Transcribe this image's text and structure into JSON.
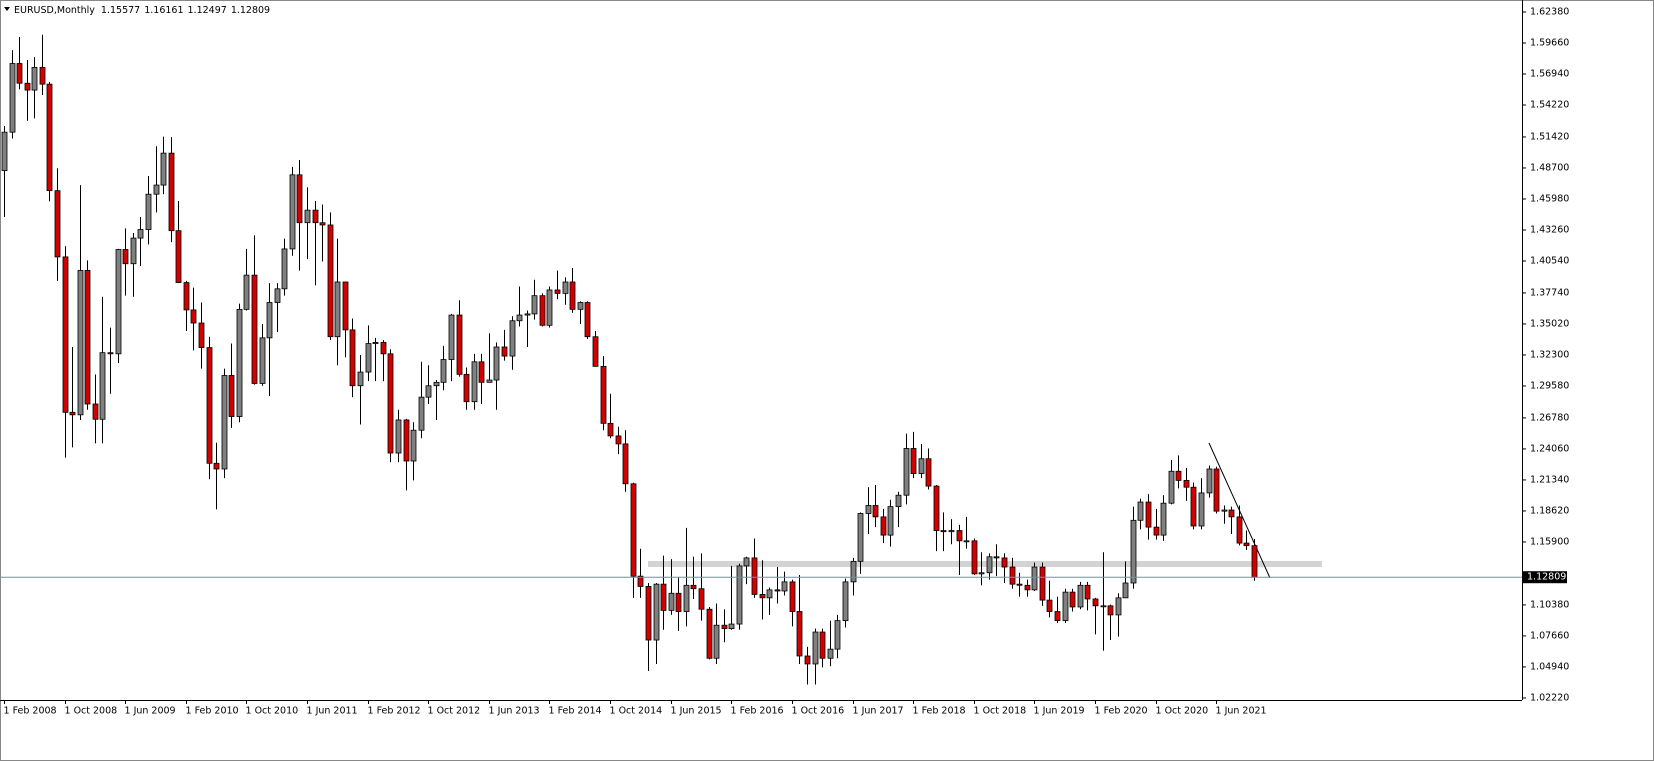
{
  "chart_data": {
    "type": "candlestick",
    "symbol": "EURUSD,Monthly",
    "categories": [
      "1 Feb 2008",
      null,
      null,
      null,
      null,
      null,
      null,
      null,
      "1 Oct 2008",
      null,
      null,
      null,
      null,
      null,
      null,
      null,
      "1 Jun 2009",
      null,
      null,
      null,
      null,
      null,
      null,
      null,
      "1 Feb 2010",
      null,
      null,
      null,
      null,
      null,
      null,
      null,
      "1 Oct 2010",
      null,
      null,
      null,
      null,
      null,
      null,
      null,
      "1 Jun 2011",
      null,
      null,
      null,
      null,
      null,
      null,
      null,
      "1 Feb 2012",
      null,
      null,
      null,
      null,
      null,
      null,
      null,
      "1 Oct 2012",
      null,
      null,
      null,
      null,
      null,
      null,
      null,
      "1 Jun 2013",
      null,
      null,
      null,
      null,
      null,
      null,
      null,
      "1 Feb 2014",
      null,
      null,
      null,
      null,
      null,
      null,
      null,
      "1 Oct 2014",
      null,
      null,
      null,
      null,
      null,
      null,
      null,
      "1 Jun 2015",
      null,
      null,
      null,
      null,
      null,
      null,
      null,
      "1 Feb 2016",
      null,
      null,
      null,
      null,
      null,
      null,
      null,
      "1 Oct 2016",
      null,
      null,
      null,
      null,
      null,
      null,
      null,
      "1 Jun 2017",
      null,
      null,
      null,
      null,
      null,
      null,
      null,
      "1 Feb 2018",
      null,
      null,
      null,
      null,
      null,
      null,
      null,
      "1 Oct 2018",
      null,
      null,
      null,
      null,
      null,
      null,
      null,
      "1 Jun 2019",
      null,
      null,
      null,
      null,
      null,
      null,
      null,
      "1 Feb 2020",
      null,
      null,
      null,
      null,
      null,
      null,
      null,
      "1 Oct 2020",
      null,
      null,
      null,
      null,
      null,
      null,
      null,
      "1 Jun 2021",
      null,
      null,
      null,
      null,
      null
    ],
    "open": [
      1.4847,
      1.5184,
      1.5786,
      1.5613,
      1.5553,
      1.5752,
      1.5605,
      1.4671,
      1.409,
      1.2727,
      1.2705,
      1.3971,
      1.28,
      1.2666,
      1.325,
      1.324,
      1.4155,
      1.403,
      1.4255,
      1.433,
      1.464,
      1.472,
      1.5,
      1.432,
      1.3865,
      1.3625,
      1.351,
      1.3295,
      1.228,
      1.223,
      1.305,
      1.269,
      1.363,
      1.393,
      1.298,
      1.338,
      1.369,
      1.381,
      1.416,
      1.481,
      1.439,
      1.45,
      1.439,
      1.437,
      1.339,
      1.387,
      1.345,
      1.296,
      1.308,
      1.333,
      1.334,
      1.324,
      1.237,
      1.266,
      1.23,
      1.257,
      1.286,
      1.296,
      1.299,
      1.319,
      1.358,
      1.306,
      1.282,
      1.317,
      1.299,
      1.301,
      1.33,
      1.322,
      1.353,
      1.358,
      1.359,
      1.375,
      1.349,
      1.38,
      1.377,
      1.387,
      1.363,
      1.369,
      1.339,
      1.313,
      1.263,
      1.252,
      1.245,
      1.21,
      1.129,
      1.12,
      1.073,
      1.122,
      1.099,
      1.114,
      1.098,
      1.121,
      1.118,
      1.1,
      1.057,
      1.086,
      1.083,
      1.087,
      1.138,
      1.145,
      1.113,
      1.11,
      1.117,
      1.116,
      1.124,
      1.098,
      1.059,
      1.052,
      1.08,
      1.057,
      1.065,
      1.09,
      1.124,
      1.142,
      1.184,
      1.191,
      1.181,
      1.165,
      1.19,
      1.2,
      1.241,
      1.219,
      1.232,
      1.208,
      1.169,
      1.168,
      1.169,
      1.16,
      1.16,
      1.131,
      1.132,
      1.146,
      1.145,
      1.137,
      1.122,
      1.121,
      1.117,
      1.137,
      1.108,
      1.098,
      1.09,
      1.115,
      1.102,
      1.121,
      1.109,
      1.103,
      1.103,
      1.095,
      1.11,
      1.123,
      1.178,
      1.194,
      1.172,
      1.165,
      1.193,
      1.221,
      1.213,
      1.207,
      1.173,
      1.202,
      1.223,
      1.186,
      1.187,
      1.181,
      1.158,
      1.15577
    ],
    "high": [
      1.5238,
      1.5903,
      1.6019,
      1.5817,
      1.5842,
      1.6038,
      1.5625,
      1.4867,
      1.4183,
      1.33,
      1.472,
      1.406,
      1.306,
      1.374,
      1.347,
      1.416,
      1.434,
      1.43,
      1.444,
      1.48,
      1.506,
      1.5145,
      1.514,
      1.458,
      1.388,
      1.382,
      1.369,
      1.339,
      1.246,
      1.311,
      1.333,
      1.368,
      1.416,
      1.428,
      1.35,
      1.386,
      1.386,
      1.425,
      1.488,
      1.494,
      1.47,
      1.458,
      1.455,
      1.448,
      1.425,
      1.387,
      1.355,
      1.323,
      1.349,
      1.338,
      1.336,
      1.328,
      1.275,
      1.267,
      1.264,
      1.317,
      1.314,
      1.301,
      1.331,
      1.359,
      1.371,
      1.312,
      1.324,
      1.324,
      1.342,
      1.334,
      1.345,
      1.357,
      1.383,
      1.362,
      1.389,
      1.377,
      1.383,
      1.397,
      1.391,
      1.3993,
      1.37,
      1.37,
      1.344,
      1.322,
      1.289,
      1.26,
      1.257,
      1.211,
      1.153,
      1.123,
      1.123,
      1.147,
      1.144,
      1.128,
      1.1714,
      1.146,
      1.149,
      1.102,
      1.105,
      1.1,
      1.138,
      1.14,
      1.146,
      1.162,
      1.143,
      1.119,
      1.137,
      1.133,
      1.126,
      1.13,
      1.067,
      1.083,
      1.083,
      1.09,
      1.095,
      1.127,
      1.145,
      1.185,
      1.207,
      1.209,
      1.188,
      1.196,
      1.203,
      1.254,
      1.2555,
      1.245,
      1.241,
      1.209,
      1.185,
      1.179,
      1.174,
      1.181,
      1.162,
      1.15,
      1.149,
      1.157,
      1.149,
      1.145,
      1.132,
      1.126,
      1.141,
      1.141,
      1.125,
      1.111,
      1.118,
      1.118,
      1.124,
      1.124,
      1.11,
      1.15,
      1.104,
      1.114,
      1.142,
      1.19,
      1.197,
      1.201,
      1.188,
      1.2,
      1.231,
      1.2349,
      1.224,
      1.211,
      1.215,
      1.226,
      1.225,
      1.191,
      1.19,
      1.191,
      1.169,
      1.16161
    ],
    "low": [
      1.444,
      1.5128,
      1.556,
      1.5284,
      1.5305,
      1.551,
      1.4578,
      1.388,
      1.233,
      1.242,
      1.266,
      1.275,
      1.2455,
      1.2455,
      1.289,
      1.316,
      1.375,
      1.374,
      1.401,
      1.42,
      1.448,
      1.464,
      1.422,
      1.386,
      1.344,
      1.327,
      1.311,
      1.214,
      1.1876,
      1.215,
      1.259,
      1.264,
      1.362,
      1.297,
      1.296,
      1.287,
      1.343,
      1.375,
      1.41,
      1.397,
      1.407,
      1.384,
      1.405,
      1.336,
      1.314,
      1.321,
      1.286,
      1.262,
      1.3,
      1.3,
      1.3,
      1.229,
      1.229,
      1.2042,
      1.213,
      1.25,
      1.28,
      1.266,
      1.292,
      1.3,
      1.304,
      1.275,
      1.275,
      1.28,
      1.299,
      1.275,
      1.318,
      1.31,
      1.348,
      1.33,
      1.354,
      1.348,
      1.347,
      1.372,
      1.367,
      1.36,
      1.35,
      1.337,
      1.313,
      1.257,
      1.25,
      1.236,
      1.203,
      1.11,
      1.11,
      1.0458,
      1.052,
      1.082,
      1.095,
      1.081,
      1.085,
      1.109,
      1.09,
      1.056,
      1.052,
      1.071,
      1.082,
      1.082,
      1.122,
      1.11,
      1.091,
      1.095,
      1.105,
      1.112,
      1.085,
      1.052,
      1.034,
      1.034,
      1.049,
      1.05,
      1.057,
      1.084,
      1.112,
      1.131,
      1.166,
      1.172,
      1.158,
      1.155,
      1.172,
      1.192,
      1.215,
      1.215,
      1.205,
      1.151,
      1.151,
      1.157,
      1.13,
      1.153,
      1.13,
      1.121,
      1.126,
      1.129,
      1.123,
      1.118,
      1.111,
      1.111,
      1.116,
      1.103,
      1.093,
      1.088,
      1.088,
      1.098,
      1.1,
      1.099,
      1.078,
      1.0636,
      1.073,
      1.076,
      1.11,
      1.118,
      1.17,
      1.161,
      1.161,
      1.16,
      1.192,
      1.206,
      1.195,
      1.17,
      1.17,
      1.198,
      1.184,
      1.175,
      1.166,
      1.156,
      1.152,
      1.12497
    ],
    "close": [
      1.5184,
      1.5786,
      1.5613,
      1.5553,
      1.5752,
      1.5605,
      1.4671,
      1.409,
      1.2727,
      1.2705,
      1.3971,
      1.28,
      1.2666,
      1.325,
      1.324,
      1.4155,
      1.403,
      1.4255,
      1.433,
      1.464,
      1.472,
      1.5,
      1.432,
      1.3865,
      1.3625,
      1.351,
      1.3295,
      1.228,
      1.223,
      1.305,
      1.269,
      1.363,
      1.393,
      1.298,
      1.338,
      1.369,
      1.381,
      1.416,
      1.481,
      1.439,
      1.45,
      1.439,
      1.437,
      1.339,
      1.387,
      1.345,
      1.296,
      1.308,
      1.333,
      1.334,
      1.324,
      1.237,
      1.266,
      1.23,
      1.257,
      1.286,
      1.296,
      1.299,
      1.319,
      1.358,
      1.306,
      1.282,
      1.317,
      1.299,
      1.301,
      1.33,
      1.322,
      1.353,
      1.358,
      1.359,
      1.375,
      1.349,
      1.38,
      1.377,
      1.387,
      1.363,
      1.369,
      1.339,
      1.313,
      1.263,
      1.252,
      1.245,
      1.21,
      1.129,
      1.12,
      1.073,
      1.122,
      1.099,
      1.114,
      1.098,
      1.121,
      1.118,
      1.1,
      1.057,
      1.086,
      1.083,
      1.087,
      1.138,
      1.145,
      1.113,
      1.11,
      1.117,
      1.116,
      1.124,
      1.098,
      1.059,
      1.052,
      1.08,
      1.057,
      1.065,
      1.09,
      1.124,
      1.142,
      1.184,
      1.191,
      1.181,
      1.165,
      1.19,
      1.2,
      1.241,
      1.219,
      1.232,
      1.208,
      1.169,
      1.168,
      1.169,
      1.16,
      1.16,
      1.131,
      1.132,
      1.146,
      1.145,
      1.137,
      1.122,
      1.121,
      1.117,
      1.137,
      1.108,
      1.098,
      1.09,
      1.115,
      1.102,
      1.121,
      1.109,
      1.103,
      1.103,
      1.095,
      1.11,
      1.123,
      1.178,
      1.194,
      1.172,
      1.165,
      1.193,
      1.221,
      1.213,
      1.207,
      1.173,
      1.202,
      1.223,
      1.186,
      1.187,
      1.181,
      1.158,
      1.15577,
      1.12809
    ],
    "up_color": "#808080",
    "down_color": "#d40000",
    "ylim": [
      1.0204,
      1.6343
    ],
    "yticks": [
      {
        "value": 1.6238,
        "label": "1.62380"
      },
      {
        "value": 1.5966,
        "label": "1.59660"
      },
      {
        "value": 1.5694,
        "label": "1.56940"
      },
      {
        "value": 1.5422,
        "label": "1.54220"
      },
      {
        "value": 1.5142,
        "label": "1.51420"
      },
      {
        "value": 1.487,
        "label": "1.48700"
      },
      {
        "value": 1.4598,
        "label": "1.45980"
      },
      {
        "value": 1.4326,
        "label": "1.43260"
      },
      {
        "value": 1.4054,
        "label": "1.40540"
      },
      {
        "value": 1.3774,
        "label": "1.37740"
      },
      {
        "value": 1.3502,
        "label": "1.35020"
      },
      {
        "value": 1.323,
        "label": "1.32300"
      },
      {
        "value": 1.2958,
        "label": "1.29580"
      },
      {
        "value": 1.2678,
        "label": "1.26780"
      },
      {
        "value": 1.2406,
        "label": "1.24060"
      },
      {
        "value": 1.2134,
        "label": "1.21340"
      },
      {
        "value": 1.1862,
        "label": "1.18620"
      },
      {
        "value": 1.159,
        "label": "1.15900"
      },
      {
        "value": 1.1038,
        "label": "1.10380"
      },
      {
        "value": 1.0766,
        "label": "1.07660"
      },
      {
        "value": 1.0494,
        "label": "1.04940"
      },
      {
        "value": 1.0222,
        "label": "1.02220"
      }
    ],
    "grid": false
  }
}
